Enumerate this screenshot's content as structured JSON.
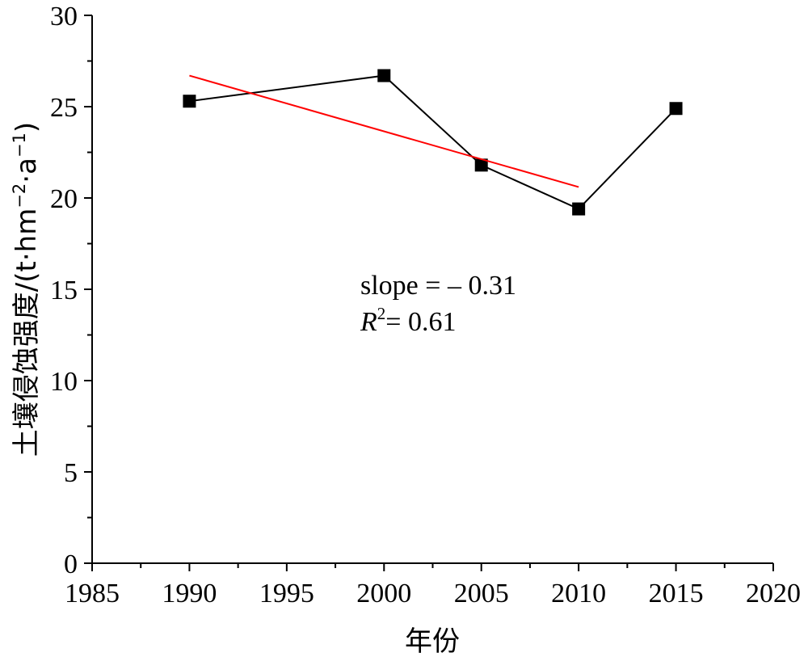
{
  "chart_data": {
    "type": "line",
    "xlabel": "年份",
    "ylabel": {
      "main": "土壤侵蚀强度/(t·hm",
      "sup1": "−2",
      "mid": "·a",
      "sup2": "−1",
      "end": ")"
    },
    "xlim": [
      1985,
      2020
    ],
    "ylim": [
      0,
      30
    ],
    "xticks": [
      1985,
      1990,
      1995,
      2000,
      2005,
      2010,
      2015,
      2020
    ],
    "yticks": [
      0,
      5,
      10,
      15,
      20,
      25,
      30
    ],
    "series": [
      {
        "x": [
          1990,
          2000,
          2005,
          2010,
          2015
        ],
        "y": [
          25.3,
          26.7,
          21.8,
          19.4,
          24.9
        ],
        "color": "#000000",
        "marker": "square"
      }
    ],
    "trendline": {
      "x": [
        1990,
        2010
      ],
      "y": [
        26.7,
        20.6
      ],
      "color": "#ff0000"
    },
    "annotations": {
      "slope_text": "slope = – 0.31",
      "r2_symbol": "R",
      "r2_sup": "2",
      "r2_value": "= 0.61"
    },
    "grid": false,
    "legend": "none"
  }
}
